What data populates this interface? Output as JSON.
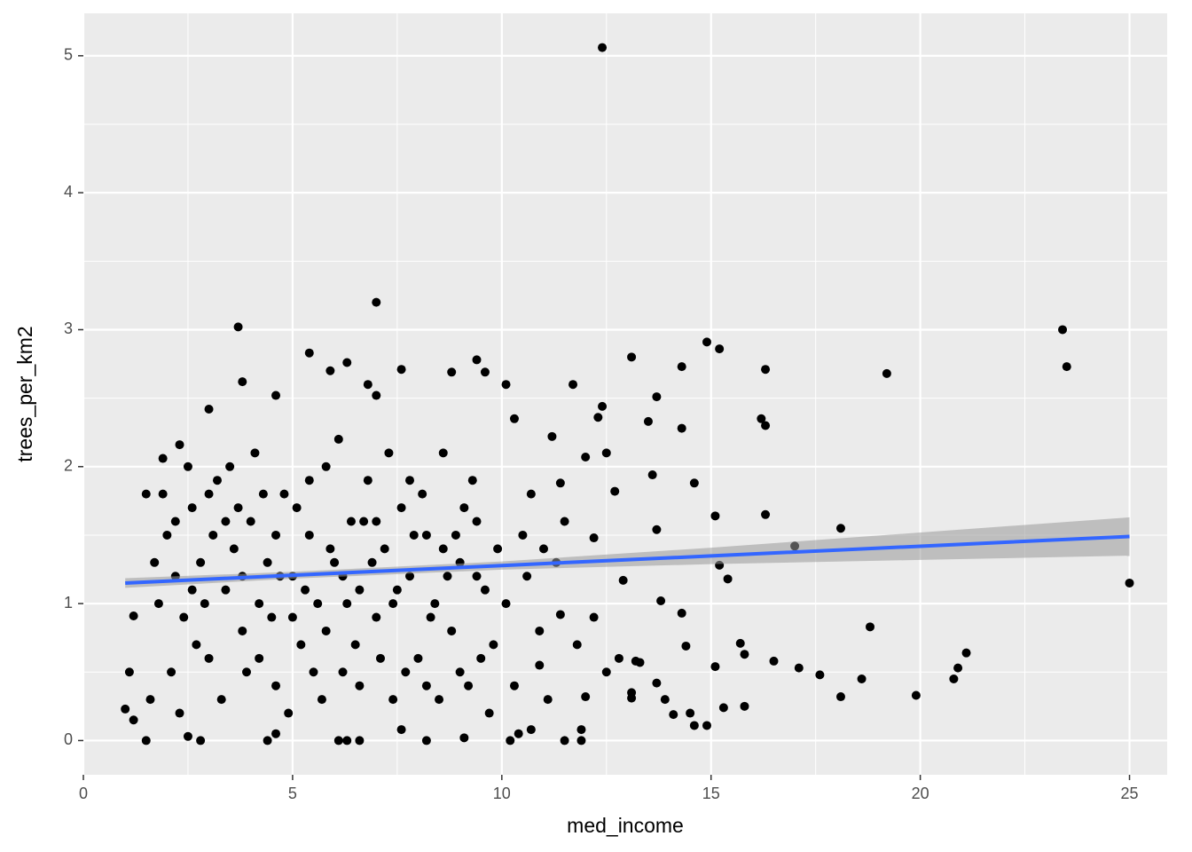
{
  "chart_data": {
    "type": "scatter",
    "x_label": "med_income",
    "y_label": "trees_per_km2",
    "xlim": [
      0,
      25.9
    ],
    "ylim": [
      -0.25,
      5.31
    ],
    "xticks": [
      0,
      5,
      10,
      15,
      20,
      25
    ],
    "yticks": [
      0,
      1,
      2,
      3,
      4,
      5
    ],
    "grid": true,
    "panel_color": "#ebebeb",
    "series": [
      {
        "color": "#000000",
        "x": [
          12.4,
          7.0,
          3.7,
          23.4,
          23.5,
          19.2,
          14.9,
          15.2,
          25.0,
          18.1,
          17.0,
          16.3,
          18.8,
          21.1,
          20.9,
          20.8,
          19.9,
          18.6,
          18.1,
          17.6,
          17.1,
          16.5,
          15.8,
          15.3,
          14.9,
          14.6,
          14.5,
          14.1,
          13.9,
          13.7,
          15.1,
          15.7,
          15.8,
          15.4,
          15.2,
          15.1,
          14.6,
          14.3,
          14.3,
          16.3,
          16.2,
          16.3,
          14.3,
          13.8,
          14.4,
          13.1,
          13.7,
          13.5,
          13.6,
          13.7,
          13.1,
          13.1,
          12.8,
          13.2,
          12.5,
          11.5,
          11.9,
          11.9,
          12.0,
          11.7,
          12.4,
          12.3,
          12.5,
          12.7,
          12.2,
          12.9,
          13.3,
          10.7,
          10.2,
          10.4,
          9.1,
          8.2,
          7.6,
          6.6,
          6.3,
          6.1,
          4.4,
          4.6,
          2.8,
          2.5,
          1.5,
          1.0,
          1.2,
          1.1,
          1.2,
          1.5,
          1.9,
          2.3,
          3.0,
          3.8,
          4.6,
          5.4,
          5.9,
          6.3,
          7.6,
          7.0,
          6.8,
          8.8,
          9.4,
          9.6,
          10.1,
          10.3,
          11.2,
          11.4,
          12.0,
          11.5,
          11.0,
          10.6,
          10.9,
          11.4,
          11.8,
          12.2,
          2.0,
          2.2,
          2.4,
          2.6,
          2.8,
          3.0,
          3.2,
          3.4,
          3.6,
          3.8,
          4.0,
          4.2,
          4.4,
          4.6,
          4.8,
          5.0,
          5.2,
          5.4,
          5.6,
          5.8,
          6.0,
          6.2,
          6.4,
          6.6,
          6.8,
          7.0,
          7.2,
          7.4,
          7.6,
          7.8,
          8.0,
          8.2,
          8.4,
          8.6,
          8.8,
          9.0,
          9.2,
          9.4,
          9.6,
          9.8,
          1.6,
          1.8,
          2.1,
          2.5,
          2.9,
          3.3,
          3.7,
          4.1,
          4.5,
          4.9,
          5.3,
          5.7,
          6.1,
          6.5,
          6.9,
          7.3,
          7.7,
          8.1,
          8.5,
          8.9,
          9.3,
          9.7,
          10.1,
          10.5,
          10.9,
          11.3,
          1.7,
          2.3,
          2.7,
          3.1,
          3.5,
          3.9,
          4.3,
          4.7,
          5.1,
          5.5,
          5.9,
          6.3,
          6.7,
          7.1,
          7.5,
          7.9,
          8.3,
          8.7,
          9.1,
          9.5,
          9.9,
          10.3,
          10.7,
          11.1,
          1.9,
          2.2,
          2.6,
          3.0,
          3.4,
          3.8,
          4.2,
          4.6,
          5.0,
          5.4,
          5.8,
          6.2,
          6.6,
          7.0,
          7.4,
          7.8,
          8.2,
          8.6,
          9.0,
          9.4
        ],
        "values": [
          5.06,
          3.2,
          3.02,
          3.0,
          2.73,
          2.68,
          2.91,
          2.86,
          1.15,
          1.55,
          1.42,
          1.65,
          0.83,
          0.64,
          0.53,
          0.45,
          0.33,
          0.45,
          0.32,
          0.48,
          0.53,
          0.58,
          0.25,
          0.24,
          0.11,
          0.11,
          0.2,
          0.19,
          0.3,
          0.42,
          0.54,
          0.71,
          0.63,
          1.18,
          1.28,
          1.64,
          1.88,
          2.28,
          2.73,
          2.71,
          2.35,
          2.3,
          0.93,
          1.02,
          0.69,
          2.8,
          2.51,
          2.33,
          1.94,
          1.54,
          0.35,
          0.31,
          0.6,
          0.58,
          0.5,
          0.0,
          0.08,
          0.0,
          0.32,
          2.6,
          2.44,
          2.36,
          2.1,
          1.82,
          1.48,
          1.17,
          0.57,
          0.08,
          0.0,
          0.05,
          0.02,
          0.0,
          0.08,
          0.0,
          0.0,
          0.0,
          0.0,
          0.05,
          0.0,
          0.03,
          0.0,
          0.23,
          0.15,
          0.5,
          0.91,
          1.8,
          2.06,
          2.16,
          2.42,
          2.62,
          2.52,
          2.83,
          2.7,
          2.76,
          2.71,
          2.52,
          2.6,
          2.69,
          2.78,
          2.69,
          2.6,
          2.35,
          2.22,
          1.88,
          2.07,
          1.6,
          1.4,
          1.2,
          0.55,
          0.92,
          0.7,
          0.9,
          1.5,
          1.2,
          0.9,
          1.7,
          1.3,
          0.6,
          1.9,
          1.1,
          1.4,
          0.8,
          1.6,
          1.0,
          1.3,
          0.4,
          1.8,
          1.2,
          0.7,
          1.5,
          1.0,
          2.0,
          1.3,
          0.5,
          1.6,
          1.1,
          1.9,
          0.9,
          1.4,
          0.3,
          1.7,
          1.2,
          0.6,
          1.5,
          1.0,
          2.1,
          0.8,
          1.3,
          0.4,
          1.6,
          1.1,
          0.7,
          0.3,
          1.0,
          0.5,
          2.0,
          1.0,
          0.3,
          1.7,
          2.1,
          0.9,
          0.2,
          1.1,
          0.3,
          2.2,
          0.7,
          1.3,
          2.1,
          0.5,
          1.8,
          0.3,
          1.5,
          1.9,
          0.2,
          1.0,
          1.5,
          0.8,
          1.3,
          1.3,
          0.2,
          0.7,
          1.5,
          2.0,
          0.5,
          1.8,
          1.2,
          1.7,
          0.5,
          1.4,
          1.0,
          1.6,
          0.6,
          1.1,
          1.5,
          0.9,
          1.2,
          1.7,
          0.6,
          1.4,
          0.4,
          1.8,
          0.3,
          1.8,
          1.6,
          1.1,
          1.8,
          1.6,
          1.2,
          0.6,
          1.5,
          0.9,
          1.9,
          0.8,
          1.2,
          0.4,
          1.6,
          1.0,
          1.9,
          0.4,
          1.4,
          0.5,
          1.2
        ]
      }
    ],
    "trend": {
      "color": "#3366ff",
      "band_color": "#999999",
      "x": [
        1,
        5,
        10,
        15,
        20,
        25
      ],
      "values": [
        1.15,
        1.207,
        1.278,
        1.348,
        1.419,
        1.49
      ],
      "lower": [
        1.115,
        1.182,
        1.248,
        1.288,
        1.319,
        1.35
      ],
      "upper": [
        1.185,
        1.232,
        1.308,
        1.408,
        1.519,
        1.63
      ]
    }
  }
}
